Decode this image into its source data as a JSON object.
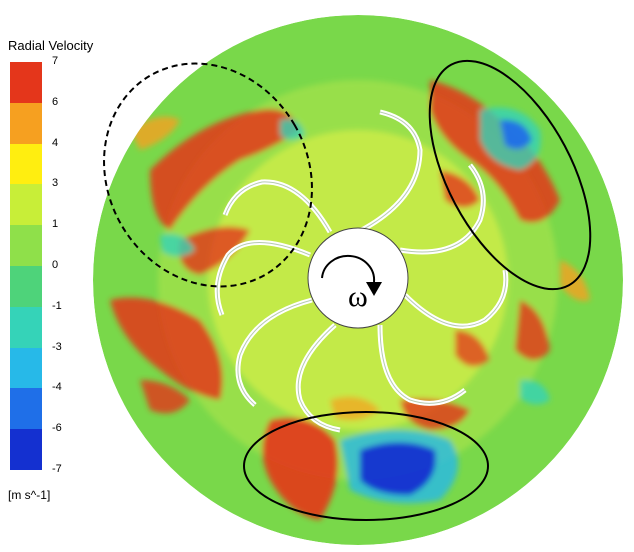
{
  "legend": {
    "title": "Radial Velocity",
    "units": "[m s^-1]",
    "ticks": [
      "7",
      "6",
      "4",
      "3",
      "1",
      "0",
      "-1",
      "-3",
      "-4",
      "-6",
      "-7"
    ],
    "colors": [
      "#e4361b",
      "#f6a020",
      "#ffee10",
      "#c8ee38",
      "#8fe04a",
      "#4ed37a",
      "#35d3b8",
      "#27b9e8",
      "#1f6fe8",
      "#1430d0"
    ]
  },
  "rotation_symbol": "ω",
  "palette": {
    "background_field": "#79d84a",
    "hub": "#ffffff",
    "blade": "#ffffff"
  }
}
